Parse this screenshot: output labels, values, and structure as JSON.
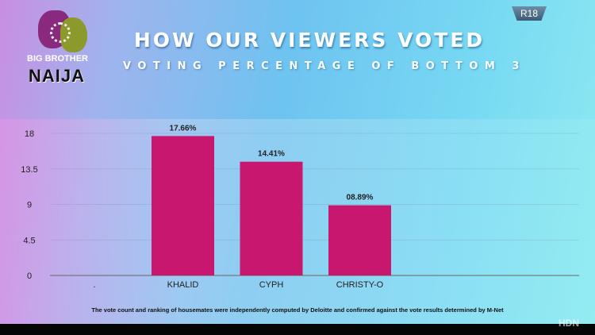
{
  "logo": {
    "line1": "BIG BROTHER",
    "line2": "NAIJA"
  },
  "rating_badge": "R18",
  "watermark": "HDN",
  "footnote": "The vote count and ranking of housemates were independently computed by Deloitte and confirmed against the vote results determined by M-Net",
  "colors": {
    "bar": "#c8176e",
    "axis": "#666666"
  },
  "chart_data": {
    "type": "bar",
    "title": "HOW OUR VIEWERS VOTED",
    "subtitle": "VOTING PERCENTAGE OF BOTTOM 3",
    "categories": [
      ".",
      "KHALID",
      "CYPH",
      "CHRISTY-O"
    ],
    "values": [
      null,
      17.66,
      14.41,
      8.89
    ],
    "data_labels": [
      "",
      "17.66%",
      "14.41%",
      "08.89%"
    ],
    "yticks": [
      "0",
      "4.5",
      "9",
      "13.5",
      "18"
    ],
    "ylim": [
      0,
      18
    ],
    "grid": true,
    "legend": "none"
  }
}
